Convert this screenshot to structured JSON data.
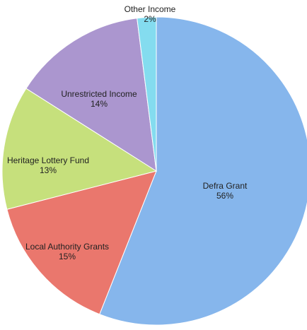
{
  "chart_data": {
    "type": "pie",
    "categories": [
      "Defra Grant",
      "Local Authority Grants",
      "Heritage Lottery Fund",
      "Unrestricted Income",
      "Other Income"
    ],
    "values": [
      56,
      15,
      13,
      14,
      2
    ],
    "value_labels": [
      "56%",
      "15%",
      "13%",
      "14%",
      "2%"
    ],
    "colors": [
      "#86b6ec",
      "#ea776d",
      "#c6e07c",
      "#ab96cf",
      "#84dcef"
    ]
  }
}
